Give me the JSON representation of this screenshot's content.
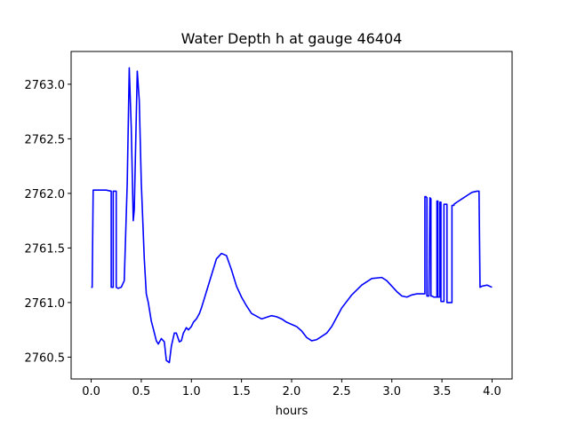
{
  "chart_data": {
    "type": "line",
    "title": "Water Depth h at gauge 46404",
    "xlabel": "hours",
    "ylabel": "",
    "xlim": [
      -0.2,
      4.2
    ],
    "ylim": [
      2760.3,
      2763.3
    ],
    "xticks": [
      0.0,
      0.5,
      1.0,
      1.5,
      2.0,
      2.5,
      3.0,
      3.5,
      4.0
    ],
    "xtick_labels": [
      "0.0",
      "0.5",
      "1.0",
      "1.5",
      "2.0",
      "2.5",
      "3.0",
      "3.5",
      "4.0"
    ],
    "yticks": [
      2760.5,
      2761.0,
      2761.5,
      2762.0,
      2762.5,
      2763.0
    ],
    "ytick_labels": [
      "2760.5",
      "2761.0",
      "2761.5",
      "2762.0",
      "2762.5",
      "2763.0"
    ],
    "grid": false,
    "series": [
      {
        "color": "#0000ff",
        "x": [
          0.0,
          0.01,
          0.02,
          0.05,
          0.1,
          0.15,
          0.2,
          0.2,
          0.22,
          0.22,
          0.25,
          0.25,
          0.27,
          0.27,
          0.3,
          0.33,
          0.36,
          0.38,
          0.4,
          0.42,
          0.43,
          0.45,
          0.46,
          0.48,
          0.5,
          0.53,
          0.55,
          0.57,
          0.6,
          0.62,
          0.65,
          0.67,
          0.7,
          0.73,
          0.75,
          0.78,
          0.8,
          0.83,
          0.85,
          0.88,
          0.9,
          0.92,
          0.95,
          0.97,
          1.0,
          1.02,
          1.05,
          1.08,
          1.1,
          1.15,
          1.2,
          1.25,
          1.3,
          1.35,
          1.4,
          1.45,
          1.5,
          1.55,
          1.6,
          1.7,
          1.8,
          1.85,
          1.9,
          1.95,
          2.0,
          2.05,
          2.1,
          2.15,
          2.2,
          2.25,
          2.3,
          2.35,
          2.4,
          2.5,
          2.6,
          2.7,
          2.8,
          2.9,
          2.95,
          3.0,
          3.05,
          3.1,
          3.15,
          3.2,
          3.25,
          3.3,
          3.33,
          3.33,
          3.34,
          3.35,
          3.35,
          3.37,
          3.38,
          3.38,
          3.39,
          3.39,
          3.4,
          3.4,
          3.42,
          3.42,
          3.45,
          3.45,
          3.46,
          3.46,
          3.48,
          3.48,
          3.49,
          3.49,
          3.52,
          3.52,
          3.55,
          3.55,
          3.56,
          3.56,
          3.6,
          3.6,
          3.62,
          3.62,
          3.65,
          3.7,
          3.75,
          3.8,
          3.85,
          3.87,
          3.88,
          3.9,
          3.95,
          4.0
        ],
        "y": [
          2761.14,
          2761.14,
          2762.03,
          2762.03,
          2762.03,
          2762.03,
          2762.02,
          2761.14,
          2761.14,
          2762.02,
          2762.02,
          2761.14,
          2761.13,
          2761.13,
          2761.14,
          2761.2,
          2762.1,
          2763.15,
          2762.6,
          2761.75,
          2761.85,
          2762.7,
          2763.12,
          2762.85,
          2762.1,
          2761.4,
          2761.08,
          2761.0,
          2760.83,
          2760.76,
          2760.65,
          2760.62,
          2760.67,
          2760.64,
          2760.47,
          2760.45,
          2760.6,
          2760.72,
          2760.72,
          2760.64,
          2760.65,
          2760.72,
          2760.77,
          2760.75,
          2760.78,
          2760.82,
          2760.85,
          2760.9,
          2760.95,
          2761.1,
          2761.25,
          2761.4,
          2761.45,
          2761.43,
          2761.3,
          2761.15,
          2761.05,
          2760.97,
          2760.9,
          2760.85,
          2760.88,
          2760.87,
          2760.85,
          2760.82,
          2760.8,
          2760.78,
          2760.74,
          2760.68,
          2760.65,
          2760.66,
          2760.69,
          2760.72,
          2760.78,
          2760.95,
          2761.07,
          2761.16,
          2761.22,
          2761.23,
          2761.2,
          2761.15,
          2761.1,
          2761.06,
          2761.05,
          2761.07,
          2761.08,
          2761.08,
          2761.08,
          2761.97,
          2761.97,
          2761.96,
          2761.06,
          2761.06,
          2761.96,
          2761.96,
          2761.95,
          2761.06,
          2761.06,
          2761.06,
          2761.05,
          2761.05,
          2761.05,
          2761.93,
          2761.93,
          2761.05,
          2761.05,
          2761.92,
          2761.92,
          2761.01,
          2761.01,
          2761.9,
          2761.9,
          2761.0,
          2761.0,
          2761.0,
          2761.0,
          2761.89,
          2761.89,
          2761.9,
          2761.92,
          2761.95,
          2761.98,
          2762.01,
          2762.02,
          2762.02,
          2761.14,
          2761.15,
          2761.16,
          2761.14
        ]
      }
    ]
  }
}
